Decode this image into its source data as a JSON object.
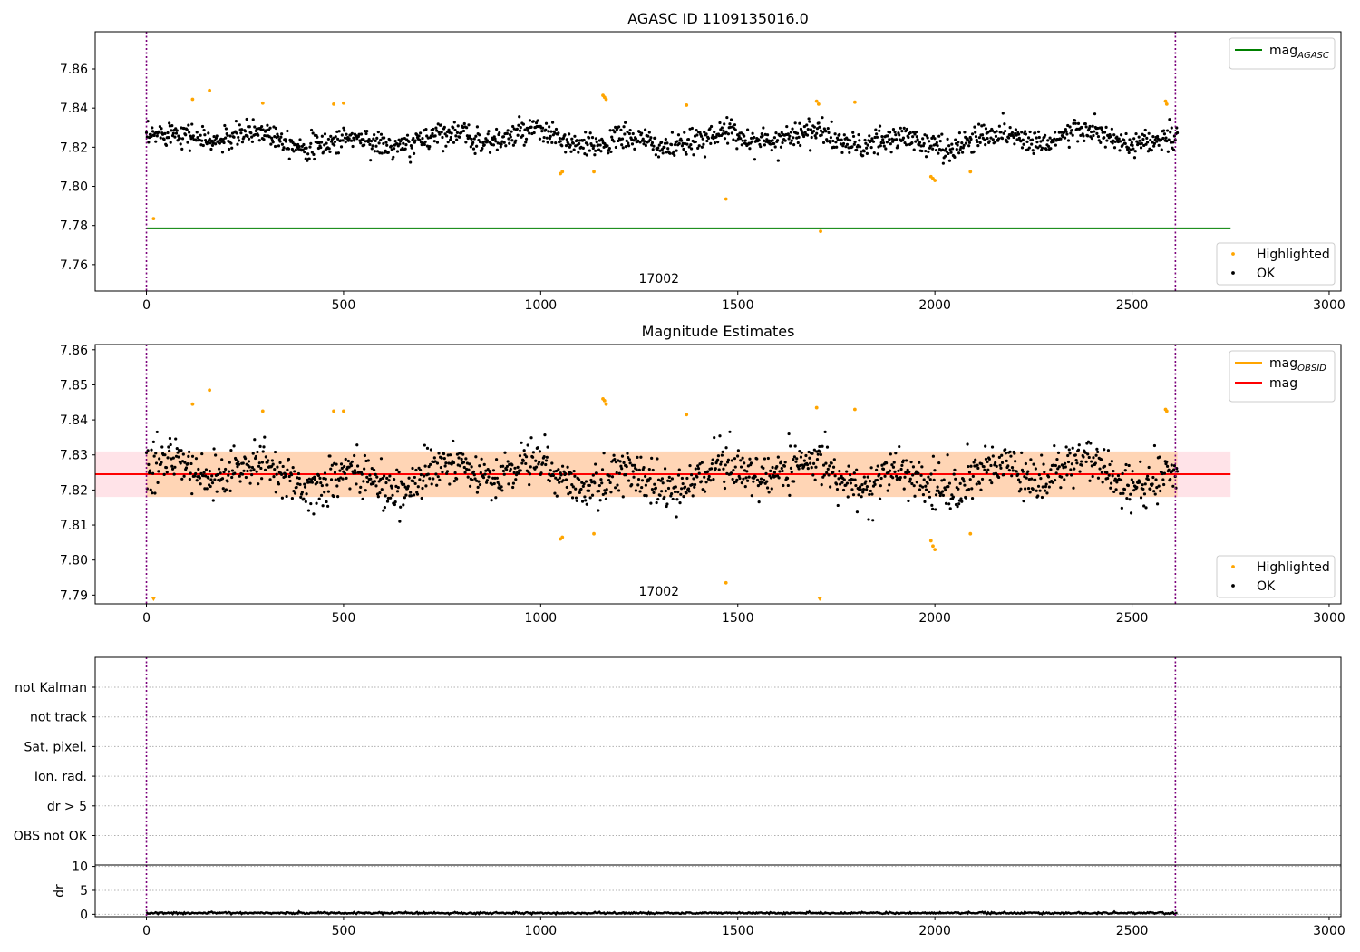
{
  "chart_data": [
    {
      "type": "scatter",
      "title": "AGASC ID 1109135016.0",
      "xlim": [
        -130,
        3030
      ],
      "ylim": [
        7.7465,
        7.879
      ],
      "x_ticks": [
        0,
        500,
        1000,
        1500,
        2000,
        2500,
        3000
      ],
      "x_tick_labels": [
        "0",
        "500",
        "1000",
        "1500",
        "2000",
        "2500",
        "3000"
      ],
      "y_ticks": [
        7.76,
        7.78,
        7.8,
        7.82,
        7.84,
        7.86
      ],
      "y_tick_labels": [
        "7.76",
        "7.78",
        "7.80",
        "7.82",
        "7.84",
        "7.86"
      ],
      "annotation": "17002",
      "vlines": [
        0,
        2610
      ],
      "hlines": [
        {
          "name": "mag_AGASC",
          "y": 7.7785,
          "x_range": [
            0,
            2750
          ],
          "color": "#008000"
        }
      ],
      "legend_upper": [
        {
          "label_main": "mag",
          "label_sub": "AGASC",
          "color": "#008000"
        }
      ],
      "legend_lower": [
        {
          "label": "Highlighted",
          "color": "#ffa500"
        },
        {
          "label": "OK",
          "color": "#000000"
        }
      ],
      "series": [
        {
          "name": "OK",
          "color": "#000000",
          "baseline": 7.824,
          "noise": 0.0045,
          "x_range": [
            0,
            2615
          ],
          "n": 1450
        },
        {
          "name": "Highlighted",
          "color": "#ffa500",
          "points": [
            [
              18,
              7.7835
            ],
            [
              117,
              7.8445
            ],
            [
              160,
              7.849
            ],
            [
              295,
              7.8425
            ],
            [
              475,
              7.842
            ],
            [
              500,
              7.8425
            ],
            [
              1050,
              7.8065
            ],
            [
              1055,
              7.8075
            ],
            [
              1135,
              7.8075
            ],
            [
              1158,
              7.8465
            ],
            [
              1162,
              7.8455
            ],
            [
              1166,
              7.8445
            ],
            [
              1370,
              7.8415
            ],
            [
              1470,
              7.7935
            ],
            [
              1700,
              7.8435
            ],
            [
              1705,
              7.842
            ],
            [
              1710,
              7.777
            ],
            [
              1797,
              7.843
            ],
            [
              1990,
              7.805
            ],
            [
              1995,
              7.804
            ],
            [
              2000,
              7.803
            ],
            [
              2090,
              7.8075
            ],
            [
              2585,
              7.8435
            ],
            [
              2588,
              7.842
            ]
          ]
        }
      ]
    },
    {
      "type": "scatter",
      "title": "Magnitude Estimates",
      "xlim": [
        -130,
        3030
      ],
      "ylim": [
        7.7875,
        7.8615
      ],
      "x_ticks": [
        0,
        500,
        1000,
        1500,
        2000,
        2500,
        3000
      ],
      "x_tick_labels": [
        "0",
        "500",
        "1000",
        "1500",
        "2000",
        "2500",
        "3000"
      ],
      "y_ticks": [
        7.79,
        7.8,
        7.81,
        7.82,
        7.83,
        7.84,
        7.85,
        7.86
      ],
      "y_tick_labels": [
        "7.79",
        "7.80",
        "7.81",
        "7.82",
        "7.83",
        "7.84",
        "7.85",
        "7.86"
      ],
      "annotation": "17002",
      "vlines": [
        0,
        2610
      ],
      "bands": [
        {
          "y_range": [
            7.818,
            7.831
          ],
          "x_range": [
            -130,
            2750
          ],
          "color": "#ffc0cb",
          "opacity": 0.45
        },
        {
          "y_range": [
            7.818,
            7.831
          ],
          "x_range": [
            0,
            2615
          ],
          "color": "#ffa500",
          "opacity": 0.22
        }
      ],
      "hlines": [
        {
          "name": "mag_OBSID",
          "y": 7.8245,
          "x_range": [
            0,
            2615
          ],
          "color": "#ffa500"
        },
        {
          "name": "mag",
          "y": 7.8245,
          "x_range": [
            -130,
            2750
          ],
          "color": "#ff0000"
        }
      ],
      "legend_upper": [
        {
          "label_main": "mag",
          "label_sub": "OBSID",
          "color": "#ffa500"
        },
        {
          "label_main": "mag",
          "label_sub": "",
          "color": "#ff0000"
        }
      ],
      "legend_lower": [
        {
          "label": "Highlighted",
          "color": "#ffa500"
        },
        {
          "label": "OK",
          "color": "#000000"
        }
      ],
      "series": [
        {
          "name": "OK",
          "color": "#000000",
          "baseline": 7.824,
          "noise": 0.0045,
          "x_range": [
            0,
            2615
          ],
          "n": 1450
        },
        {
          "name": "Highlighted",
          "color": "#ffa500",
          "points": [
            [
              117,
              7.8445
            ],
            [
              160,
              7.8485
            ],
            [
              295,
              7.8425
            ],
            [
              475,
              7.8425
            ],
            [
              500,
              7.8425
            ],
            [
              1050,
              7.806
            ],
            [
              1055,
              7.8065
            ],
            [
              1135,
              7.8075
            ],
            [
              1158,
              7.846
            ],
            [
              1162,
              7.8455
            ],
            [
              1166,
              7.8445
            ],
            [
              1370,
              7.8415
            ],
            [
              1470,
              7.7935
            ],
            [
              1700,
              7.8435
            ],
            [
              1797,
              7.843
            ],
            [
              1990,
              7.8055
            ],
            [
              1995,
              7.804
            ],
            [
              2000,
              7.803
            ],
            [
              2090,
              7.8075
            ],
            [
              2585,
              7.843
            ],
            [
              2588,
              7.8425
            ]
          ]
        }
      ],
      "offscale_low": [
        18,
        1708
      ]
    },
    {
      "type": "table",
      "title": "",
      "xlim": [
        -130,
        3030
      ],
      "flag_rows": [
        "not Kalman",
        "not track",
        "Sat. pixel.",
        "Ion. rad.",
        "dr > 5",
        "OBS not OK"
      ],
      "vlines": [
        0,
        2610
      ]
    },
    {
      "type": "line",
      "title": "",
      "ylabel": "dr",
      "xlim": [
        -130,
        3030
      ],
      "ylim": [
        -0.5,
        10.3
      ],
      "x_ticks": [
        0,
        500,
        1000,
        1500,
        2000,
        2500,
        3000
      ],
      "x_tick_labels": [
        "0",
        "500",
        "1000",
        "1500",
        "2000",
        "2500",
        "3000"
      ],
      "y_ticks": [
        0,
        5,
        10
      ],
      "y_tick_labels": [
        "0",
        "5",
        "10"
      ],
      "vlines": [
        0,
        2610
      ],
      "series": [
        {
          "name": "dr",
          "color": "#000000",
          "baseline": 0.25,
          "noise": 0.1,
          "x_range": [
            0,
            2615
          ],
          "n": 900
        }
      ]
    }
  ]
}
